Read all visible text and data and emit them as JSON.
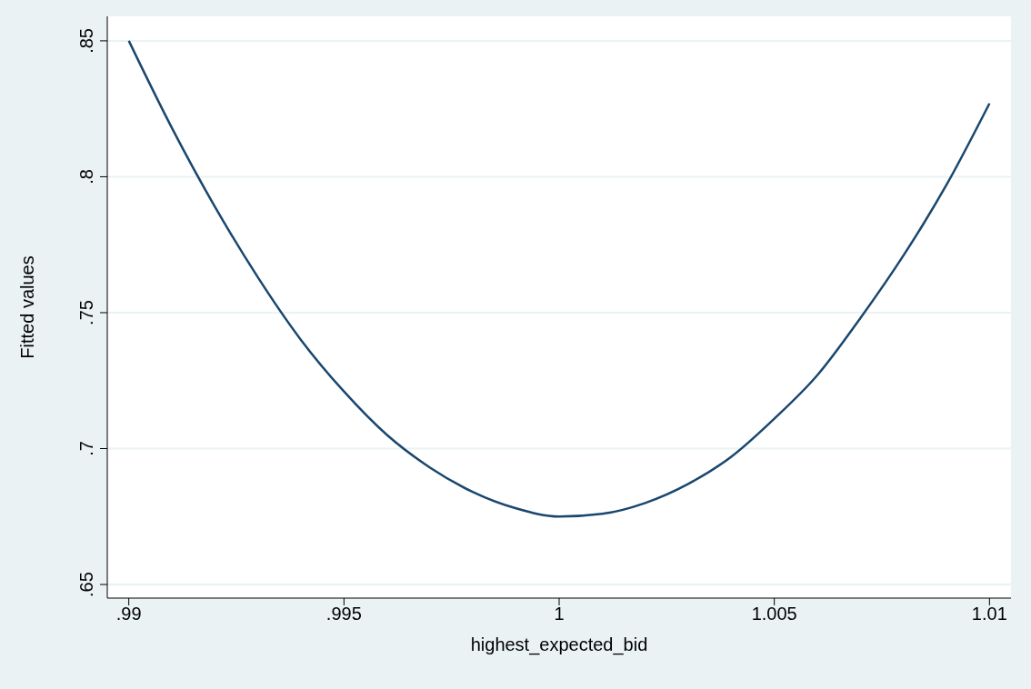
{
  "chart_data": {
    "type": "line",
    "xlabel": "highest_expected_bid",
    "ylabel": "Fitted values",
    "x": [
      0.99,
      0.991,
      0.992,
      0.993,
      0.994,
      0.995,
      0.996,
      0.997,
      0.998,
      0.999,
      1.0,
      1.001,
      1.002,
      1.003,
      1.004,
      1.005,
      1.006,
      1.007,
      1.008,
      1.009,
      1.01
    ],
    "series": [
      {
        "color": "#1a476f",
        "values": [
          0.85,
          0.818,
          0.789,
          0.763,
          0.74,
          0.721,
          0.705,
          0.693,
          0.684,
          0.678,
          0.675,
          0.676,
          0.68,
          0.687,
          0.697,
          0.711,
          0.727,
          0.748,
          0.771,
          0.797,
          0.827
        ]
      }
    ],
    "xlim": [
      0.9895,
      1.0105
    ],
    "xticks": [
      {
        "value": 0.99,
        "label": ".99"
      },
      {
        "value": 0.995,
        "label": ".995"
      },
      1,
      {
        "value": 1.005,
        "label": "1.005"
      },
      {
        "value": 1.01,
        "label": "1.01"
      }
    ],
    "ylim": [
      0.645,
      0.859
    ],
    "yticks": [
      {
        "value": 0.65,
        "label": ".65"
      },
      {
        "value": 0.7,
        "label": ".7"
      },
      {
        "value": 0.75,
        "label": ".75"
      },
      {
        "value": 0.8,
        "label": ".8"
      },
      {
        "value": 0.85,
        "label": ".85"
      }
    ],
    "grid": "y",
    "legend": false,
    "marker": "none",
    "line_style": "solid"
  }
}
